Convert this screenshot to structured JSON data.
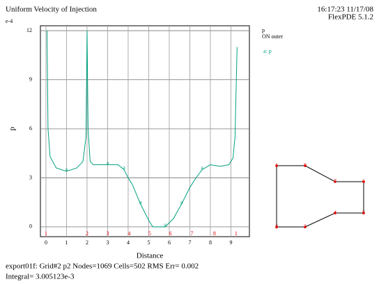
{
  "chart_data": {
    "type": "line",
    "title": "Uniform Velocity of Injection",
    "timestamp": "16:17:23 11/17/08",
    "software": "FlexPDE 5.1.2",
    "y_exponent": "e-4",
    "xlabel": "Distance",
    "ylabel": "p",
    "legend_title": "p",
    "legend_subtitle": "ON outer",
    "x": [
      0.05,
      0.1,
      0.2,
      0.5,
      1.0,
      1.5,
      1.8,
      1.95,
      2.0,
      2.05,
      2.15,
      2.3,
      3.0,
      3.5,
      3.8,
      4.0,
      4.2,
      4.6,
      5.0,
      5.2,
      5.8,
      6.2,
      6.6,
      7.0,
      7.3,
      7.6,
      8.0,
      8.5,
      8.9,
      9.1,
      9.2,
      9.3
    ],
    "series": [
      {
        "name": "a: p",
        "marker_label": "a",
        "color": "#00a080",
        "values": [
          12,
          6,
          4.3,
          3.6,
          3.4,
          3.6,
          4.0,
          5.5,
          12,
          6,
          4.0,
          3.8,
          3.8,
          3.8,
          3.5,
          3.0,
          2.6,
          1.4,
          0.4,
          0.0,
          0.0,
          0.5,
          1.4,
          2.4,
          3.0,
          3.5,
          3.8,
          3.7,
          3.8,
          4.2,
          5.5,
          11
        ]
      }
    ],
    "xlim": [
      -0.27,
      9.9
    ],
    "ylim": [
      -0.6,
      12.3
    ],
    "xticks": [
      0,
      1,
      2,
      3,
      4,
      5,
      6,
      7,
      8,
      9
    ],
    "yticks": [
      0,
      3,
      6,
      9,
      12
    ],
    "grid": true,
    "boundary_marks": {
      "labels": [
        "1",
        "2",
        "3",
        "4",
        "5",
        "6",
        "7",
        "8",
        "1"
      ],
      "x": [
        0,
        2,
        3,
        4.05,
        5.05,
        6.05,
        7.1,
        8.2,
        9.25
      ],
      "color": "#e00000"
    },
    "domain_nodes": [
      "1",
      "2",
      "3",
      "4",
      "5",
      "6",
      "7",
      "8"
    ],
    "footer": [
      "export01f:  Grid#2  p2  Nodes=1069 Cells=502 RMS Err= 0.002",
      "Integral=  3.005123e-3"
    ]
  }
}
